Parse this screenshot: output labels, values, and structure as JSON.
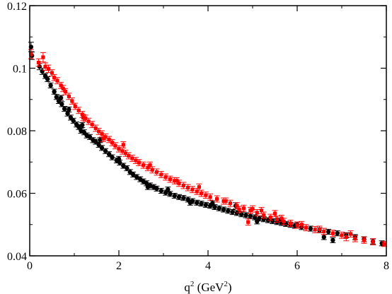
{
  "chart_data": {
    "type": "scatter",
    "xlabel": {
      "base": "q",
      "sup": "2",
      "rest": " (GeV",
      "unit_sup": "2",
      "close": ")"
    },
    "ylabel": "",
    "xlim": [
      0,
      8
    ],
    "ylim": [
      0.04,
      0.12
    ],
    "x_ticks": [
      0,
      2,
      4,
      6,
      8
    ],
    "x_tick_labels": [
      "0",
      "2",
      "4",
      "6",
      "8"
    ],
    "y_ticks": [
      0.04,
      0.06,
      0.08,
      0.1,
      0.12
    ],
    "y_tick_labels": [
      "0.04",
      "0.06",
      "0.08",
      "0.1",
      "0.12"
    ],
    "grid": false,
    "legend": "none",
    "series": [
      {
        "color": "#000000",
        "marker": "circle",
        "points": [
          [
            0.03,
            0.1068,
            0.0015
          ],
          [
            0.05,
            0.104,
            0.0012
          ],
          [
            0.22,
            0.1005,
            0.001
          ],
          [
            0.28,
            0.099,
            0.001
          ],
          [
            0.35,
            0.0975,
            0.0008
          ],
          [
            0.4,
            0.0965,
            0.0008
          ],
          [
            0.47,
            0.0945,
            0.0008
          ],
          [
            0.55,
            0.0925,
            0.0008
          ],
          [
            0.6,
            0.0908,
            0.0008
          ],
          [
            0.65,
            0.0895,
            0.0008
          ],
          [
            0.72,
            0.0885,
            0.0008
          ],
          [
            0.78,
            0.087,
            0.0008
          ],
          [
            0.85,
            0.0855,
            0.0008
          ],
          [
            0.92,
            0.0842,
            0.0008
          ],
          [
            0.98,
            0.0832,
            0.0008
          ],
          [
            1.05,
            0.082,
            0.0008
          ],
          [
            1.1,
            0.0812,
            0.0008
          ],
          [
            1.15,
            0.08,
            0.0008
          ],
          [
            1.22,
            0.0795,
            0.0008
          ],
          [
            1.28,
            0.0785,
            0.0008
          ],
          [
            1.35,
            0.078,
            0.0008
          ],
          [
            1.42,
            0.077,
            0.0008
          ],
          [
            1.48,
            0.0765,
            0.0008
          ],
          [
            1.55,
            0.0755,
            0.0008
          ],
          [
            1.62,
            0.0745,
            0.0008
          ],
          [
            1.7,
            0.0735,
            0.0008
          ],
          [
            1.78,
            0.0725,
            0.0008
          ],
          [
            1.85,
            0.0715,
            0.0008
          ],
          [
            1.95,
            0.0705,
            0.0008
          ],
          [
            2.02,
            0.0698,
            0.0008
          ],
          [
            2.1,
            0.0688,
            0.0008
          ],
          [
            2.18,
            0.068,
            0.0008
          ],
          [
            2.25,
            0.0668,
            0.0008
          ],
          [
            2.32,
            0.066,
            0.0008
          ],
          [
            2.4,
            0.0652,
            0.0008
          ],
          [
            2.48,
            0.0645,
            0.0008
          ],
          [
            2.55,
            0.0638,
            0.0008
          ],
          [
            2.62,
            0.0632,
            0.0008
          ],
          [
            2.7,
            0.0625,
            0.0008
          ],
          [
            2.78,
            0.062,
            0.0008
          ],
          [
            2.85,
            0.0615,
            0.0008
          ],
          [
            2.95,
            0.0608,
            0.0008
          ],
          [
            3.05,
            0.0602,
            0.0008
          ],
          [
            3.15,
            0.0598,
            0.0008
          ],
          [
            3.25,
            0.0592,
            0.0008
          ],
          [
            3.35,
            0.0588,
            0.0008
          ],
          [
            3.45,
            0.0585,
            0.0008
          ],
          [
            3.55,
            0.058,
            0.0008
          ],
          [
            3.65,
            0.0575,
            0.0008
          ],
          [
            3.75,
            0.057,
            0.0008
          ],
          [
            3.85,
            0.0567,
            0.0008
          ],
          [
            3.95,
            0.0563,
            0.0008
          ],
          [
            4.05,
            0.056,
            0.0008
          ],
          [
            4.15,
            0.0556,
            0.0008
          ],
          [
            4.25,
            0.0552,
            0.0008
          ],
          [
            4.35,
            0.0548,
            0.0008
          ],
          [
            4.45,
            0.0544,
            0.0008
          ],
          [
            4.55,
            0.054,
            0.0008
          ],
          [
            4.65,
            0.0537,
            0.0008
          ],
          [
            4.75,
            0.0533,
            0.0008
          ],
          [
            4.85,
            0.053,
            0.0008
          ],
          [
            4.95,
            0.0527,
            0.0008
          ],
          [
            5.05,
            0.0523,
            0.0008
          ],
          [
            5.15,
            0.052,
            0.0008
          ],
          [
            5.25,
            0.0517,
            0.0008
          ],
          [
            5.35,
            0.0514,
            0.0008
          ],
          [
            5.45,
            0.0511,
            0.0008
          ],
          [
            5.55,
            0.0508,
            0.0008
          ],
          [
            5.65,
            0.0505,
            0.0008
          ],
          [
            5.75,
            0.0502,
            0.0008
          ],
          [
            5.85,
            0.0499,
            0.0008
          ],
          [
            5.95,
            0.0496,
            0.0008
          ],
          [
            6.1,
            0.0492,
            0.0008
          ],
          [
            6.3,
            0.0487,
            0.0008
          ],
          [
            6.5,
            0.0482,
            0.0008
          ],
          [
            6.6,
            0.046,
            0.0008
          ],
          [
            6.7,
            0.0477,
            0.0008
          ],
          [
            6.9,
            0.0472,
            0.0008
          ],
          [
            7.1,
            0.0466,
            0.0008
          ],
          [
            7.3,
            0.046,
            0.0008
          ],
          [
            7.5,
            0.0453,
            0.0008
          ],
          [
            7.7,
            0.0446,
            0.0008
          ],
          [
            7.9,
            0.044,
            0.0008
          ],
          [
            0.7,
            0.0905,
            0.0008
          ],
          [
            0.88,
            0.0868,
            0.0008
          ],
          [
            1.18,
            0.0818,
            0.0008
          ],
          [
            1.58,
            0.077,
            0.0008
          ],
          [
            2.0,
            0.071,
            0.0008
          ],
          [
            2.65,
            0.062,
            0.0008
          ],
          [
            3.1,
            0.0612,
            0.0008
          ],
          [
            3.6,
            0.057,
            0.0008
          ],
          [
            4.1,
            0.0568,
            0.0008
          ],
          [
            4.62,
            0.056,
            0.001
          ],
          [
            5.1,
            0.051,
            0.0008
          ],
          [
            5.6,
            0.0512,
            0.0008
          ],
          [
            6.0,
            0.05,
            0.0008
          ],
          [
            6.8,
            0.045,
            0.0008
          ]
        ]
      },
      {
        "color": "#ff0000",
        "marker": "square",
        "points": [
          [
            0.03,
            0.1045,
            0.0015
          ],
          [
            0.2,
            0.1018,
            0.0012
          ],
          [
            0.3,
            0.1035,
            0.0015
          ],
          [
            0.35,
            0.1005,
            0.0012
          ],
          [
            0.42,
            0.0998,
            0.0012
          ],
          [
            0.5,
            0.0985,
            0.001
          ],
          [
            0.55,
            0.097,
            0.001
          ],
          [
            0.62,
            0.096,
            0.001
          ],
          [
            0.7,
            0.0945,
            0.001
          ],
          [
            0.75,
            0.0935,
            0.001
          ],
          [
            0.8,
            0.0925,
            0.001
          ],
          [
            0.88,
            0.091,
            0.001
          ],
          [
            0.95,
            0.0895,
            0.001
          ],
          [
            1.02,
            0.0878,
            0.001
          ],
          [
            1.1,
            0.0865,
            0.001
          ],
          [
            1.18,
            0.0852,
            0.001
          ],
          [
            1.25,
            0.084,
            0.001
          ],
          [
            1.32,
            0.083,
            0.001
          ],
          [
            1.4,
            0.082,
            0.001
          ],
          [
            1.48,
            0.0808,
            0.001
          ],
          [
            1.55,
            0.0798,
            0.001
          ],
          [
            1.62,
            0.079,
            0.001
          ],
          [
            1.7,
            0.078,
            0.001
          ],
          [
            1.78,
            0.0772,
            0.001
          ],
          [
            1.85,
            0.0762,
            0.001
          ],
          [
            1.92,
            0.0752,
            0.001
          ],
          [
            2.0,
            0.0742,
            0.001
          ],
          [
            2.08,
            0.0735,
            0.001
          ],
          [
            2.15,
            0.0728,
            0.001
          ],
          [
            2.22,
            0.072,
            0.001
          ],
          [
            2.3,
            0.0712,
            0.001
          ],
          [
            2.38,
            0.0705,
            0.001
          ],
          [
            2.45,
            0.0698,
            0.001
          ],
          [
            2.55,
            0.069,
            0.001
          ],
          [
            2.65,
            0.0682,
            0.001
          ],
          [
            2.75,
            0.0675,
            0.001
          ],
          [
            2.85,
            0.0668,
            0.001
          ],
          [
            2.95,
            0.066,
            0.001
          ],
          [
            3.05,
            0.0652,
            0.001
          ],
          [
            3.15,
            0.0645,
            0.001
          ],
          [
            3.25,
            0.064,
            0.001
          ],
          [
            3.35,
            0.0632,
            0.001
          ],
          [
            3.45,
            0.0625,
            0.001
          ],
          [
            3.55,
            0.0618,
            0.001
          ],
          [
            3.65,
            0.0612,
            0.001
          ],
          [
            3.75,
            0.0606,
            0.001
          ],
          [
            3.85,
            0.06,
            0.001
          ],
          [
            3.95,
            0.0594,
            0.001
          ],
          [
            4.05,
            0.0588,
            0.001
          ],
          [
            4.2,
            0.0582,
            0.001
          ],
          [
            4.35,
            0.0575,
            0.001
          ],
          [
            4.5,
            0.0568,
            0.001
          ],
          [
            4.65,
            0.056,
            0.001
          ],
          [
            4.8,
            0.0552,
            0.001
          ],
          [
            4.95,
            0.0545,
            0.001
          ],
          [
            5.1,
            0.0538,
            0.001
          ],
          [
            5.25,
            0.053,
            0.001
          ],
          [
            5.4,
            0.0523,
            0.001
          ],
          [
            5.55,
            0.0517,
            0.001
          ],
          [
            5.7,
            0.051,
            0.001
          ],
          [
            5.85,
            0.0504,
            0.001
          ],
          [
            6.0,
            0.0498,
            0.001
          ],
          [
            6.2,
            0.049,
            0.001
          ],
          [
            6.4,
            0.0484,
            0.001
          ],
          [
            6.6,
            0.0478,
            0.001
          ],
          [
            6.8,
            0.0472,
            0.001
          ],
          [
            7.0,
            0.0466,
            0.001
          ],
          [
            7.1,
            0.046,
            0.0012
          ],
          [
            7.3,
            0.0455,
            0.001
          ],
          [
            7.5,
            0.045,
            0.001
          ],
          [
            7.7,
            0.0445,
            0.001
          ],
          [
            7.95,
            0.0438,
            0.0008
          ],
          [
            1.2,
            0.0842,
            0.001
          ],
          [
            1.65,
            0.0775,
            0.001
          ],
          [
            2.1,
            0.0755,
            0.001
          ],
          [
            2.7,
            0.069,
            0.001
          ],
          [
            3.3,
            0.064,
            0.001
          ],
          [
            3.8,
            0.062,
            0.001
          ],
          [
            4.4,
            0.0575,
            0.001
          ],
          [
            4.7,
            0.0548,
            0.001
          ],
          [
            5.0,
            0.055,
            0.001
          ],
          [
            5.2,
            0.0545,
            0.001
          ],
          [
            5.5,
            0.0535,
            0.001
          ],
          [
            5.65,
            0.052,
            0.001
          ],
          [
            6.1,
            0.05,
            0.001
          ],
          [
            6.5,
            0.0485,
            0.001
          ],
          [
            7.2,
            0.047,
            0.001
          ],
          [
            4.9,
            0.0508,
            0.001
          ]
        ]
      }
    ]
  }
}
